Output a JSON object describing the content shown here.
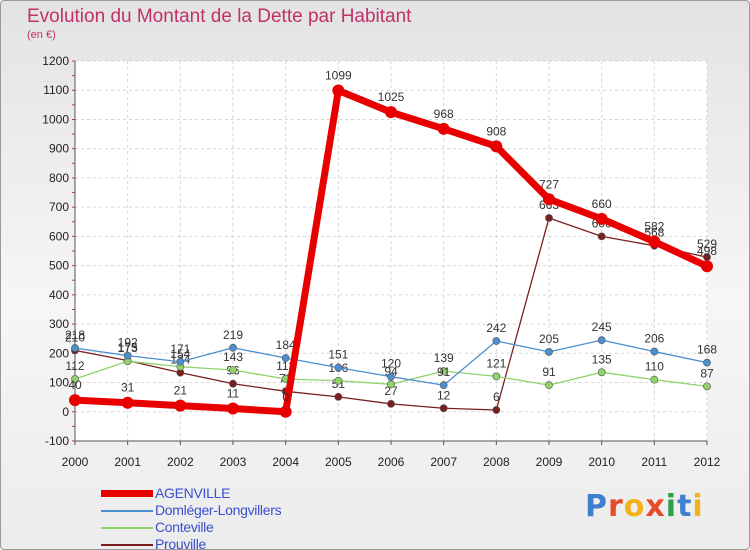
{
  "title": "Evolution du Montant de la Dette par Habitant",
  "subtitle": "(en €)",
  "logo": {
    "text": "Proxiti",
    "colors": [
      "#3f7fd0",
      "#e84a2a",
      "#f2b21b",
      "#e84a2a",
      "#2ea04a",
      "#3f7fd0",
      "#f2b21b"
    ]
  },
  "chart_data": {
    "type": "line",
    "title": "Evolution du Montant de la Dette par Habitant",
    "ylabel": "(en €)",
    "ylim": [
      -100,
      1200
    ],
    "y_ticks": [
      -100,
      0,
      100,
      200,
      300,
      400,
      500,
      600,
      700,
      800,
      900,
      1000,
      1100,
      1200
    ],
    "grid": true,
    "legend_position": "bottom-left",
    "x": [
      "2000",
      "2001",
      "2002",
      "2003",
      "2004",
      "2005",
      "2006",
      "2007",
      "2008",
      "2009",
      "2010",
      "2011",
      "2012"
    ],
    "series": [
      {
        "name": "Prouville",
        "color": "#7a1f1f",
        "values": [
          210,
          175,
          134,
          96,
          70,
          51,
          27,
          12,
          6,
          663,
          600,
          568,
          529
        ]
      },
      {
        "name": "Conteville",
        "color": "#8fd36a",
        "values": [
          112,
          173,
          154,
          143,
          112,
          106,
          94,
          139,
          121,
          91,
          135,
          110,
          87
        ]
      },
      {
        "name": "Domléger-Longvillers",
        "color": "#4b8fcf",
        "values": [
          218,
          192,
          171,
          219,
          184,
          151,
          120,
          91,
          242,
          205,
          245,
          206,
          168
        ]
      },
      {
        "name": "AGENVILLE",
        "color": "#e80000",
        "values": [
          40,
          31,
          21,
          11,
          0,
          1099,
          1025,
          968,
          908,
          727,
          660,
          582,
          498
        ]
      }
    ],
    "legend": [
      "AGENVILLE",
      "Domléger-Longvillers",
      "Conteville",
      "Prouville"
    ]
  }
}
